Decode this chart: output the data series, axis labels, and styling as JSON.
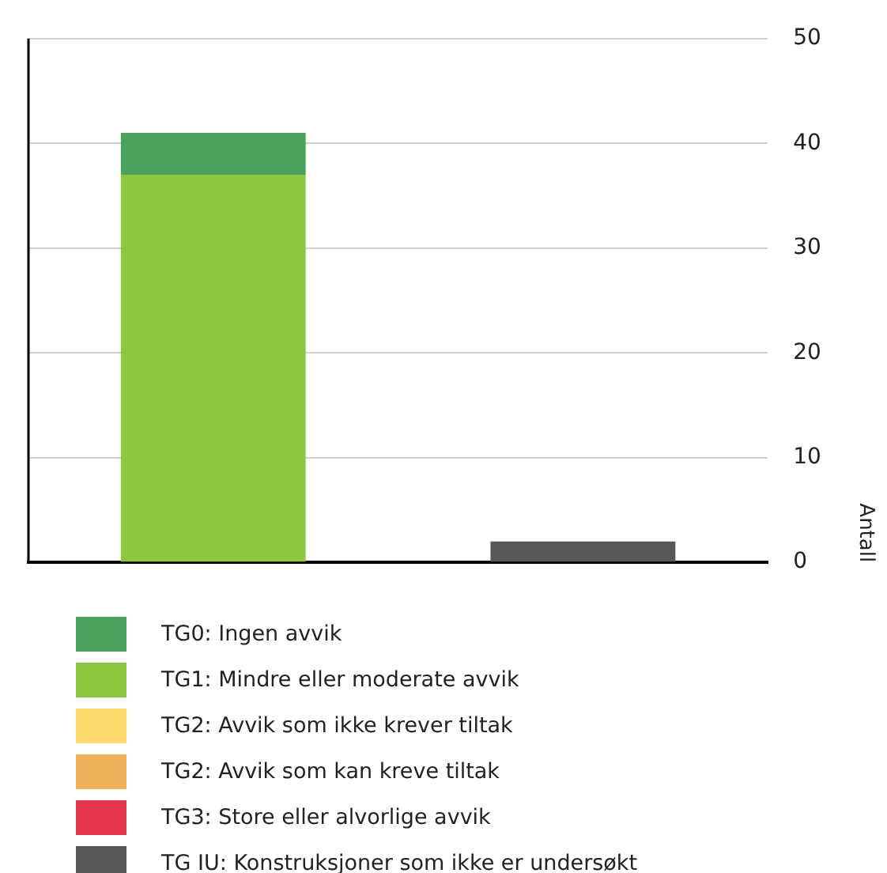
{
  "chart_data": {
    "type": "bar",
    "stacked": true,
    "categories": [
      null,
      null
    ],
    "ylabel": "Antall",
    "ylim": [
      0,
      50
    ],
    "yticks": [
      0,
      10,
      20,
      30,
      40,
      50
    ],
    "grid": "y",
    "legend": "bottom",
    "series": [
      {
        "name": "TG IU: Konstruksjoner som ikke er undersøkt",
        "color": "#58585a",
        "values": [
          0,
          2
        ]
      },
      {
        "name": "TG3: Store eller alvorlige avvik",
        "color": "#e5364b",
        "values": [
          0,
          0
        ]
      },
      {
        "name": "TG2: Avvik som kan kreve tiltak",
        "color": "#eeb05a",
        "values": [
          0,
          0
        ]
      },
      {
        "name": "TG2: Avvik som ikke krever tiltak",
        "color": "#fdd96e",
        "values": [
          0,
          0
        ]
      },
      {
        "name": "TG1: Mindre eller moderate avvik",
        "color": "#8dc63f",
        "values": [
          37,
          0
        ]
      },
      {
        "name": "TG0: Ingen avvik",
        "color": "#4aa35c",
        "values": [
          4,
          0
        ]
      }
    ]
  }
}
